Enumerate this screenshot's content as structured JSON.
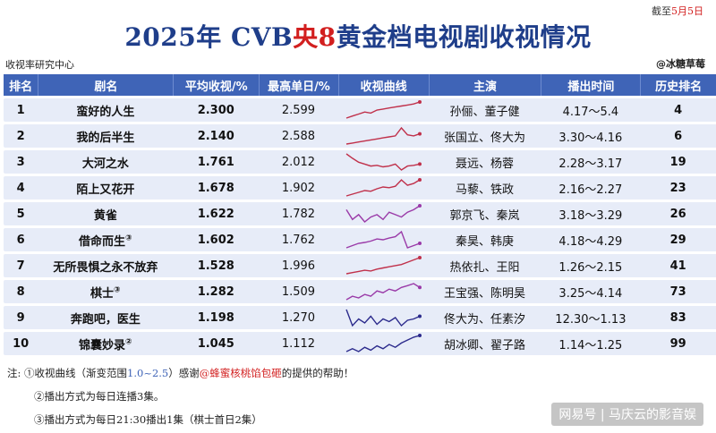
{
  "header": {
    "deadline_prefix": "截至",
    "deadline_date": "5月5日",
    "title_year": "2025年 CVB",
    "title_channel": "央8",
    "title_rest": "黄金档电视剧收视情况",
    "source": "收视率研究中心",
    "author": "@冰糖草莓"
  },
  "table": {
    "headers": [
      "排名",
      "剧名",
      "平均收视/%",
      "最高单日/%",
      "收视曲线",
      "主演",
      "播出时间",
      "历史排名"
    ],
    "rows": [
      {
        "rank": "1",
        "title": "蛮好的人生",
        "note": "",
        "avg": "2.300",
        "max": "2.599",
        "curve": [
          1.8,
          1.9,
          2.0,
          2.1,
          2.05,
          2.2,
          2.25,
          2.3,
          2.35,
          2.4,
          2.45,
          2.5,
          2.599
        ],
        "cast": "孙俪、董子健",
        "dates": "4.17～5.4",
        "history": "4"
      },
      {
        "rank": "2",
        "title": "我的后半生",
        "note": "",
        "avg": "2.140",
        "max": "2.588",
        "curve": [
          1.8,
          1.85,
          1.9,
          1.95,
          2.0,
          2.05,
          2.1,
          2.15,
          2.2,
          2.588,
          2.25,
          2.2,
          2.3
        ],
        "cast": "张国立、佟大为",
        "dates": "3.30～4.16",
        "history": "6"
      },
      {
        "rank": "3",
        "title": "大河之水",
        "note": "",
        "avg": "1.761",
        "max": "2.012",
        "curve": [
          2.012,
          1.9,
          1.8,
          1.75,
          1.7,
          1.72,
          1.68,
          1.7,
          1.75,
          1.6,
          1.7,
          1.72,
          1.75
        ],
        "cast": "聂远、杨蓉",
        "dates": "2.28～3.17",
        "history": "19"
      },
      {
        "rank": "4",
        "title": "陌上又花开",
        "note": "",
        "avg": "1.678",
        "max": "1.902",
        "curve": [
          1.45,
          1.5,
          1.55,
          1.6,
          1.58,
          1.65,
          1.7,
          1.68,
          1.72,
          1.9,
          1.75,
          1.8,
          1.902
        ],
        "cast": "马藜、铁政",
        "dates": "2.16～2.27",
        "history": "23"
      },
      {
        "rank": "5",
        "title": "黄雀",
        "note": "",
        "avg": "1.622",
        "max": "1.782",
        "curve": [
          1.7,
          1.5,
          1.6,
          1.45,
          1.55,
          1.6,
          1.5,
          1.65,
          1.6,
          1.55,
          1.65,
          1.7,
          1.782
        ],
        "cast": "郭京飞、秦岚",
        "dates": "3.18～3.29",
        "history": "26"
      },
      {
        "rank": "6",
        "title": "借命而生",
        "note": "③",
        "avg": "1.602",
        "max": "1.762",
        "curve": [
          1.4,
          1.45,
          1.5,
          1.52,
          1.55,
          1.6,
          1.58,
          1.62,
          1.65,
          1.762,
          1.4,
          1.45,
          1.5
        ],
        "cast": "秦昊、韩庚",
        "dates": "4.18～4.29",
        "history": "29"
      },
      {
        "rank": "7",
        "title": "无所畏惧之永不放弃",
        "note": "",
        "avg": "1.528",
        "max": "1.996",
        "curve": [
          1.3,
          1.35,
          1.4,
          1.45,
          1.42,
          1.5,
          1.55,
          1.6,
          1.65,
          1.7,
          1.8,
          1.9,
          1.996
        ],
        "cast": "热依扎、王阳",
        "dates": "1.26～2.15",
        "history": "41"
      },
      {
        "rank": "8",
        "title": "棋士",
        "note": "③",
        "avg": "1.282",
        "max": "1.509",
        "curve": [
          1.05,
          1.15,
          1.1,
          1.2,
          1.15,
          1.3,
          1.25,
          1.35,
          1.3,
          1.4,
          1.45,
          1.509,
          1.4
        ],
        "cast": "王宝强、陈明昊",
        "dates": "3.25～4.14",
        "history": "73"
      },
      {
        "rank": "9",
        "title": "奔跑吧，医生",
        "note": "",
        "avg": "1.198",
        "max": "1.270",
        "curve": [
          1.27,
          1.15,
          1.2,
          1.17,
          1.22,
          1.16,
          1.2,
          1.18,
          1.21,
          1.15,
          1.19,
          1.2,
          1.22
        ],
        "cast": "佟大为、任素汐",
        "dates": "12.30～1.13",
        "history": "83"
      },
      {
        "rank": "10",
        "title": "锦囊妙录",
        "note": "②",
        "avg": "1.045",
        "max": "1.112",
        "curve": [
          1.0,
          1.02,
          1.0,
          1.03,
          1.01,
          1.04,
          1.02,
          1.05,
          1.03,
          1.06,
          1.08,
          1.1,
          1.112
        ],
        "cast": "胡冰卿、翟子路",
        "dates": "1.14～1.25",
        "history": "99"
      }
    ]
  },
  "curve_range": [
    1.0,
    2.5
  ],
  "curve_colors": [
    "#c0304a",
    "#9a3aa8",
    "#2b2a8c"
  ],
  "notes": {
    "label": "注:",
    "n1_prefix": "①收视曲线（渐变范围",
    "n1_range": "1.0~2.5",
    "n1_mid": "）感谢",
    "n1_thanks": "@蜂蜜核桃馅包砸",
    "n1_suffix": "的提供的帮助！",
    "n2": "②播出方式为每日连播3集。",
    "n3": "③播出方式为每日21:30播出1集（棋士首日2集）"
  },
  "watermark": "网易号 | 马庆云的影音娱"
}
